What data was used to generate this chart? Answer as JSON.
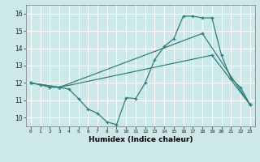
{
  "xlabel": "Humidex (Indice chaleur)",
  "bg_color": "#cce8e8",
  "line_color": "#2e7d7d",
  "grid_color": "#ffffff",
  "xlim": [
    -0.5,
    23.5
  ],
  "ylim": [
    9.5,
    16.5
  ],
  "yticks": [
    10,
    11,
    12,
    13,
    14,
    15,
    16
  ],
  "xticks": [
    0,
    1,
    2,
    3,
    4,
    5,
    6,
    7,
    8,
    9,
    10,
    11,
    12,
    13,
    14,
    15,
    16,
    17,
    18,
    19,
    20,
    21,
    22,
    23
  ],
  "line1_x": [
    0,
    1,
    2,
    3,
    4,
    5,
    6,
    7,
    8,
    9,
    10,
    11,
    12,
    13,
    14,
    15,
    16,
    17,
    18,
    19,
    20,
    21,
    22,
    23
  ],
  "line1_y": [
    12.0,
    11.9,
    11.75,
    11.75,
    11.65,
    11.1,
    10.5,
    10.25,
    9.75,
    9.6,
    11.15,
    11.1,
    12.0,
    13.35,
    14.1,
    14.55,
    15.85,
    15.85,
    15.75,
    15.75,
    13.6,
    12.25,
    11.75,
    10.75
  ],
  "line2_x": [
    0,
    3,
    18,
    23
  ],
  "line2_y": [
    12.0,
    11.75,
    14.85,
    10.75
  ],
  "line3_x": [
    0,
    3,
    19,
    23
  ],
  "line3_y": [
    12.0,
    11.75,
    13.6,
    10.75
  ]
}
